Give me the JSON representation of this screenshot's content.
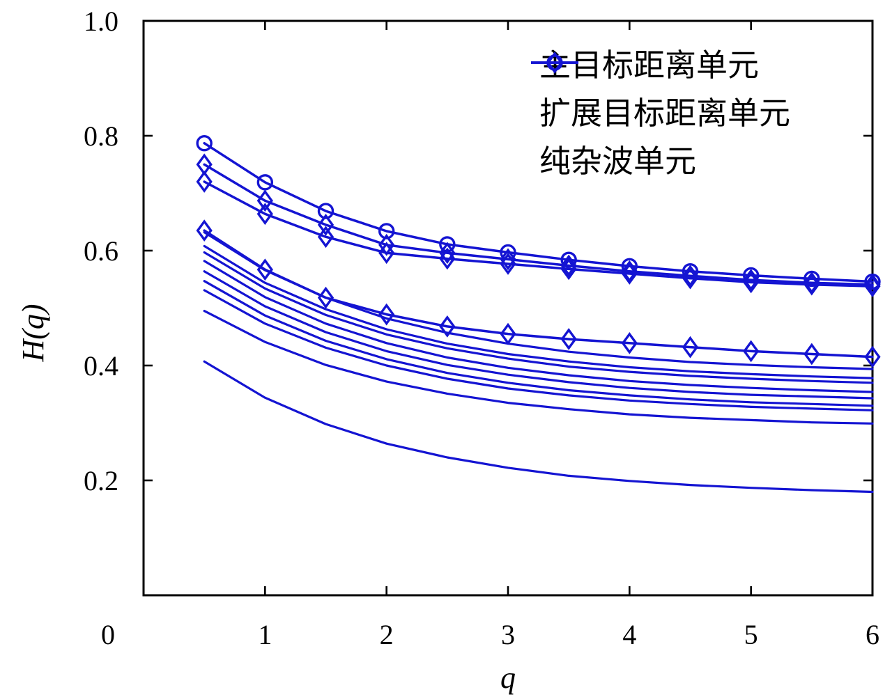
{
  "chart_data": {
    "type": "line",
    "title": "",
    "xlabel": "q",
    "ylabel": "H(q)",
    "xlim": [
      0,
      6
    ],
    "ylim": [
      0,
      1
    ],
    "grid": false,
    "legend_position": "top-right",
    "xtick_labels": [
      "0",
      "1",
      "2",
      "3",
      "4",
      "5",
      "6"
    ],
    "xtick_values": [
      0,
      1,
      2,
      3,
      4,
      5,
      6
    ],
    "ytick_labels": [
      "0.2",
      "0.4",
      "0.6",
      "0.8",
      "1.0"
    ],
    "ytick_values": [
      0.2,
      0.4,
      0.6,
      0.8,
      1.0
    ],
    "x": [
      0.5,
      1,
      1.5,
      2,
      2.5,
      3,
      3.5,
      4,
      4.5,
      5,
      5.5,
      6
    ],
    "series": [
      {
        "id": "main-target-range-cell",
        "name": "主目标距离单元",
        "marker": "circle",
        "values": [
          0.787,
          0.719,
          0.669,
          0.634,
          0.611,
          0.597,
          0.584,
          0.573,
          0.564,
          0.557,
          0.551,
          0.546
        ]
      },
      {
        "id": "extended-target-range-cell-1",
        "name": "扩展目标距离单元",
        "marker": "diamond",
        "values": [
          0.75,
          0.687,
          0.645,
          0.61,
          0.596,
          0.585,
          0.574,
          0.564,
          0.556,
          0.549,
          0.544,
          0.541
        ]
      },
      {
        "id": "extended-target-range-cell-2",
        "name": "扩展目标距离单元",
        "marker": "diamond",
        "values": [
          0.72,
          0.664,
          0.624,
          0.596,
          0.586,
          0.577,
          0.568,
          0.56,
          0.552,
          0.545,
          0.541,
          0.538
        ]
      },
      {
        "id": "extended-target-range-cell-3",
        "name": "扩展目标距离单元",
        "marker": "diamond",
        "values": [
          0.635,
          0.567,
          0.518,
          0.489,
          0.468,
          0.455,
          0.446,
          0.439,
          0.432,
          0.425,
          0.42,
          0.415
        ]
      },
      {
        "id": "clutter-cell-1",
        "name": "纯杂波单元",
        "marker": "none",
        "values": [
          0.632,
          0.566,
          0.518,
          0.482,
          0.457,
          0.438,
          0.424,
          0.414,
          0.406,
          0.401,
          0.397,
          0.394
        ]
      },
      {
        "id": "clutter-cell-2",
        "name": "纯杂波单元",
        "marker": "none",
        "values": [
          0.608,
          0.544,
          0.498,
          0.463,
          0.438,
          0.42,
          0.407,
          0.397,
          0.39,
          0.385,
          0.381,
          0.378
        ]
      },
      {
        "id": "clutter-cell-3",
        "name": "纯杂波单元",
        "marker": "none",
        "values": [
          0.597,
          0.534,
          0.488,
          0.454,
          0.43,
          0.412,
          0.398,
          0.389,
          0.382,
          0.377,
          0.373,
          0.37
        ]
      },
      {
        "id": "clutter-cell-4",
        "name": "纯杂波单元",
        "marker": "none",
        "values": [
          0.582,
          0.519,
          0.473,
          0.439,
          0.414,
          0.396,
          0.383,
          0.373,
          0.366,
          0.361,
          0.357,
          0.354
        ]
      },
      {
        "id": "clutter-cell-5",
        "name": "纯杂波单元",
        "marker": "none",
        "values": [
          0.564,
          0.503,
          0.458,
          0.425,
          0.401,
          0.384,
          0.371,
          0.361,
          0.354,
          0.349,
          0.346,
          0.343
        ]
      },
      {
        "id": "clutter-cell-6",
        "name": "纯杂波单元",
        "marker": "none",
        "values": [
          0.547,
          0.487,
          0.443,
          0.411,
          0.387,
          0.37,
          0.357,
          0.348,
          0.341,
          0.336,
          0.333,
          0.33
        ]
      },
      {
        "id": "clutter-cell-7",
        "name": "纯杂波单元",
        "marker": "none",
        "values": [
          0.531,
          0.473,
          0.431,
          0.4,
          0.377,
          0.36,
          0.348,
          0.339,
          0.333,
          0.328,
          0.325,
          0.322
        ]
      },
      {
        "id": "clutter-cell-8",
        "name": "纯杂波单元",
        "marker": "none",
        "values": [
          0.495,
          0.441,
          0.401,
          0.372,
          0.351,
          0.335,
          0.324,
          0.315,
          0.309,
          0.305,
          0.301,
          0.299
        ]
      },
      {
        "id": "clutter-cell-9",
        "name": "纯杂波单元",
        "marker": "none",
        "values": [
          0.407,
          0.344,
          0.298,
          0.264,
          0.24,
          0.222,
          0.208,
          0.199,
          0.192,
          0.187,
          0.183,
          0.18
        ]
      }
    ],
    "legend": [
      {
        "label": "主目标距离单元",
        "marker": "circle"
      },
      {
        "label": "扩展目标距离单元",
        "marker": "diamond"
      },
      {
        "label": "纯杂波单元",
        "marker": "none"
      }
    ],
    "colors": {
      "line": "#1414d2",
      "axis": "#000000",
      "text": "#000000"
    }
  }
}
